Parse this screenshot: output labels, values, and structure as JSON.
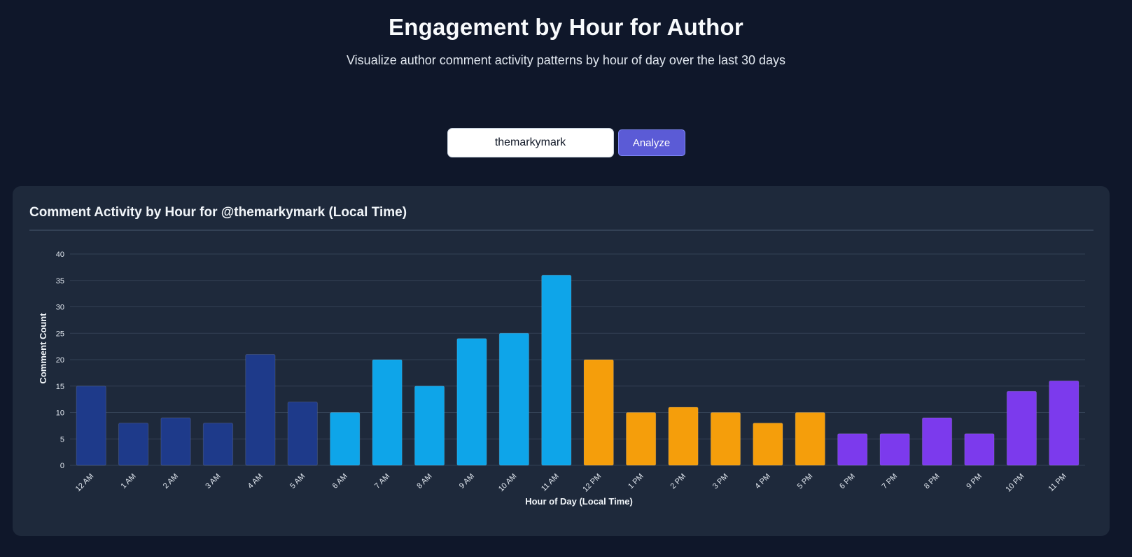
{
  "header": {
    "title": "Engagement by Hour for Author",
    "subtitle": "Visualize author comment activity patterns by hour of day over the last 30 days"
  },
  "search": {
    "value": "themarkymark",
    "button_label": "Analyze"
  },
  "panel": {
    "title": "Comment Activity by Hour for @themarkymark (Local Time)"
  },
  "colors": {
    "night": "#1e3a8a",
    "morning": "#0ea5e9",
    "afternoon": "#f59e0b",
    "evening": "#7c3aed"
  },
  "chart_data": {
    "type": "bar",
    "xlabel": "Hour of Day (Local Time)",
    "ylabel": "Comment Count",
    "ylim": [
      0,
      40
    ],
    "yticks": [
      0,
      5,
      10,
      15,
      20,
      25,
      30,
      35,
      40
    ],
    "grid": true,
    "categories": [
      "12 AM",
      "1 AM",
      "2 AM",
      "3 AM",
      "4 AM",
      "5 AM",
      "6 AM",
      "7 AM",
      "8 AM",
      "9 AM",
      "10 AM",
      "11 AM",
      "12 PM",
      "1 PM",
      "2 PM",
      "3 PM",
      "4 PM",
      "5 PM",
      "6 PM",
      "7 PM",
      "8 PM",
      "9 PM",
      "10 PM",
      "11 PM"
    ],
    "values": [
      15,
      8,
      9,
      8,
      21,
      12,
      10,
      20,
      15,
      24,
      25,
      36,
      20,
      10,
      11,
      10,
      8,
      10,
      6,
      6,
      9,
      6,
      14,
      16
    ],
    "bar_colors": [
      "night",
      "night",
      "night",
      "night",
      "night",
      "night",
      "morning",
      "morning",
      "morning",
      "morning",
      "morning",
      "morning",
      "afternoon",
      "afternoon",
      "afternoon",
      "afternoon",
      "afternoon",
      "afternoon",
      "evening",
      "evening",
      "evening",
      "evening",
      "evening",
      "evening"
    ]
  }
}
